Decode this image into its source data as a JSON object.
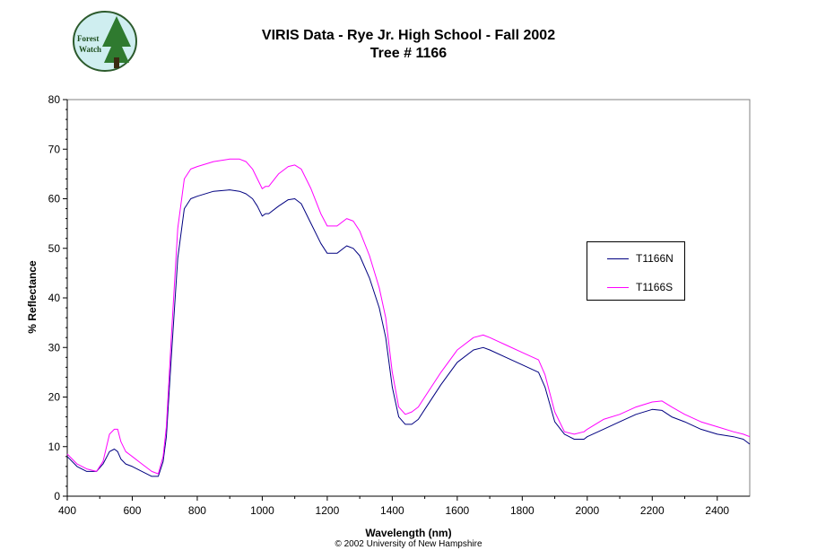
{
  "title_line1": "VIRIS Data - Rye Jr. High School - Fall 2002",
  "title_line2": "Tree # 1166",
  "logo_text_line1": "Forest",
  "logo_text_line2": "Watch",
  "copyright": "© 2002 University of New Hampshire",
  "chart_data": {
    "type": "line",
    "xlabel": "Wavelength (nm)",
    "ylabel": "% Reflectance",
    "xlim": [
      400,
      2500
    ],
    "ylim": [
      0,
      80
    ],
    "xticks": [
      400,
      600,
      800,
      1000,
      1200,
      1400,
      1600,
      1800,
      2000,
      2200,
      2400
    ],
    "yticks": [
      0,
      10,
      20,
      30,
      40,
      50,
      60,
      70,
      80
    ],
    "grid": false,
    "legend_position": "right",
    "series": [
      {
        "name": "T1166N",
        "color": "#000080",
        "x": [
          400,
          430,
          460,
          490,
          510,
          530,
          545,
          555,
          565,
          580,
          600,
          630,
          660,
          680,
          695,
          705,
          720,
          740,
          760,
          780,
          800,
          850,
          900,
          930,
          950,
          970,
          985,
          1000,
          1010,
          1020,
          1050,
          1080,
          1100,
          1120,
          1150,
          1180,
          1200,
          1230,
          1260,
          1280,
          1300,
          1330,
          1360,
          1380,
          1400,
          1420,
          1440,
          1460,
          1480,
          1500,
          1550,
          1600,
          1650,
          1680,
          1700,
          1750,
          1800,
          1850,
          1870,
          1900,
          1930,
          1960,
          1990,
          2000,
          2050,
          2100,
          2150,
          2200,
          2230,
          2260,
          2300,
          2350,
          2400,
          2450,
          2480,
          2500
        ],
        "y": [
          8,
          6,
          5,
          5,
          6.5,
          9,
          9.5,
          9,
          7.5,
          6.5,
          6,
          5,
          4,
          4,
          7,
          12,
          28,
          48,
          58,
          60,
          60.5,
          61.5,
          61.8,
          61.5,
          61,
          60,
          58.5,
          56.5,
          57,
          57,
          58.5,
          59.8,
          60,
          59,
          55,
          51,
          49,
          49,
          50.5,
          50,
          48.5,
          44,
          38,
          32,
          22,
          16,
          14.5,
          14.5,
          15.5,
          17.5,
          22.5,
          27,
          29.5,
          30,
          29.5,
          28,
          26.5,
          25,
          22,
          15,
          12.5,
          11.5,
          11.5,
          12,
          13.5,
          15,
          16.5,
          17.5,
          17.3,
          16,
          15,
          13.5,
          12.5,
          12,
          11.5,
          10.5
        ]
      },
      {
        "name": "T1166S",
        "color": "#ff00ff",
        "x": [
          400,
          430,
          460,
          490,
          510,
          530,
          545,
          555,
          565,
          580,
          600,
          630,
          660,
          680,
          695,
          705,
          720,
          740,
          760,
          780,
          800,
          850,
          900,
          930,
          950,
          970,
          985,
          1000,
          1010,
          1020,
          1050,
          1080,
          1100,
          1120,
          1150,
          1180,
          1200,
          1230,
          1260,
          1280,
          1300,
          1330,
          1360,
          1380,
          1400,
          1420,
          1440,
          1460,
          1480,
          1500,
          1550,
          1600,
          1650,
          1680,
          1700,
          1750,
          1800,
          1850,
          1870,
          1900,
          1930,
          1960,
          1990,
          2000,
          2050,
          2100,
          2150,
          2200,
          2230,
          2260,
          2300,
          2350,
          2400,
          2450,
          2480,
          2500
        ],
        "y": [
          8.5,
          6.5,
          5.5,
          5,
          7,
          12.5,
          13.5,
          13.5,
          11,
          9,
          8,
          6.5,
          5,
          4.5,
          8,
          14,
          32,
          54,
          64,
          66,
          66.5,
          67.5,
          68,
          68,
          67.5,
          66,
          64,
          62,
          62.5,
          62.5,
          65,
          66.5,
          66.8,
          66,
          62,
          57,
          54.5,
          54.5,
          56,
          55.5,
          53.5,
          48.5,
          42,
          36,
          25,
          18,
          16.5,
          17,
          18,
          20,
          25,
          29.5,
          32,
          32.5,
          32,
          30.5,
          29,
          27.5,
          24.5,
          17,
          13,
          12.5,
          13,
          13.5,
          15.5,
          16.5,
          18,
          19,
          19.2,
          18,
          16.5,
          15,
          14,
          13,
          12.5,
          12
        ]
      }
    ]
  }
}
